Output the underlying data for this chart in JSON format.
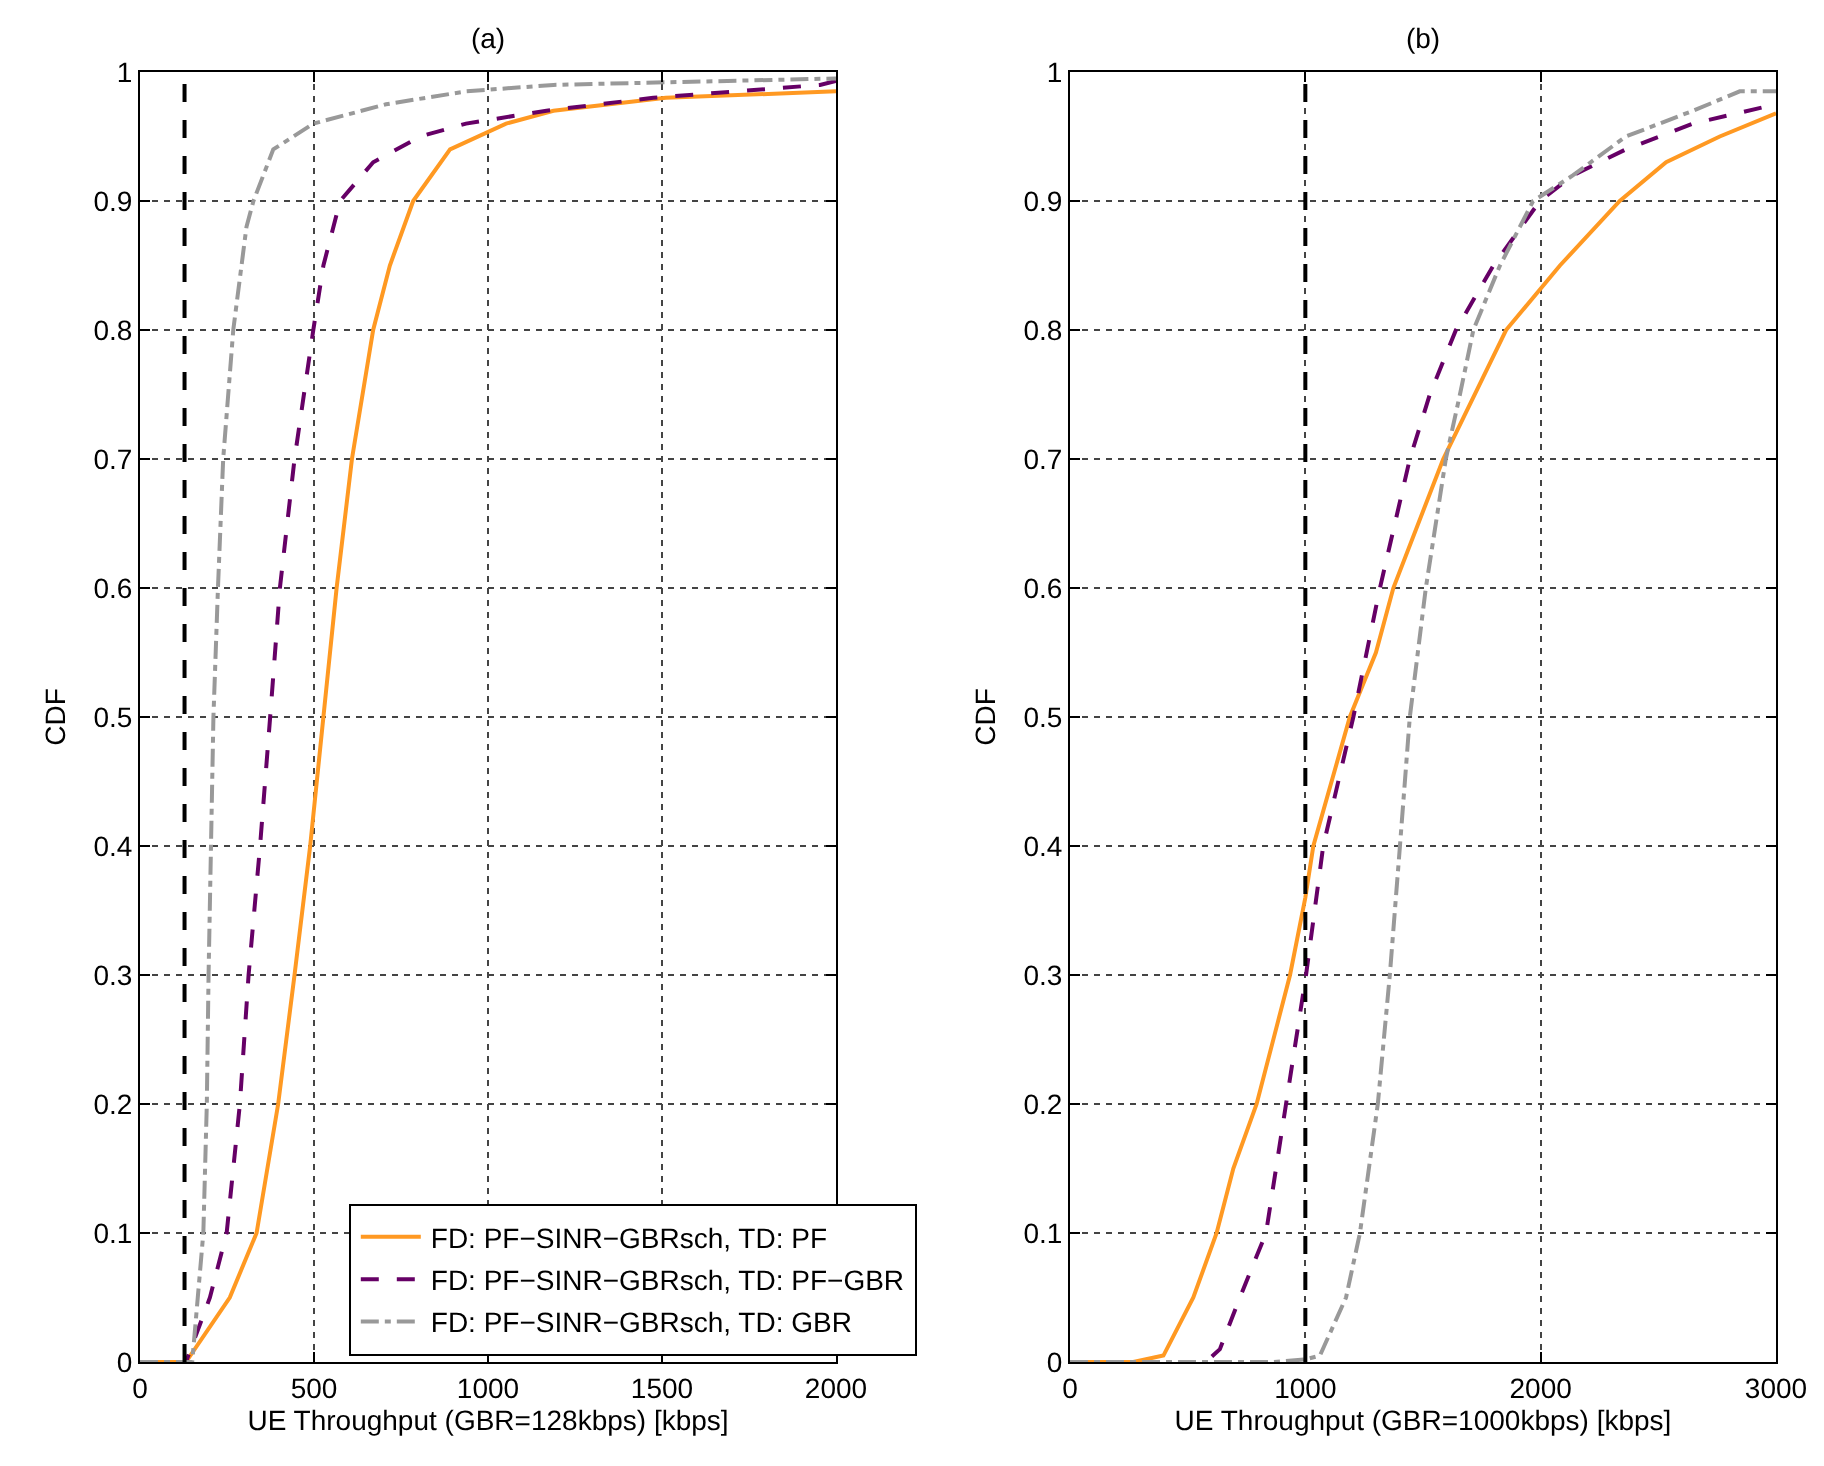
{
  "chart_data": [
    {
      "type": "line",
      "title": "(a)",
      "xlabel": "UE Throughput (GBR=128kbps) [kbps]",
      "ylabel": "CDF",
      "xlim": [
        0,
        2000
      ],
      "xticks": [
        0,
        500,
        1000,
        1500,
        2000
      ],
      "ylim": [
        0,
        1
      ],
      "yticks": [
        0,
        0.1,
        0.2,
        0.3,
        0.4,
        0.5,
        0.6,
        0.7,
        0.8,
        0.9,
        1
      ],
      "grid": true,
      "legend": "bottom right",
      "marker": "none",
      "ref_lines": [
        {
          "axis": "x",
          "value": 128,
          "color": "#000000",
          "line_style": "dashed"
        }
      ],
      "series": [
        {
          "name": "FD: PF−SINR−GBRsch, TD: PF",
          "color": "#ff9922",
          "line_style": "solid",
          "x": [
            0,
            132,
            258,
            335,
            397,
            444,
            489,
            527,
            565,
            609,
            670,
            718,
            785,
            891,
            1052,
            1188,
            1511,
            2000
          ],
          "values": [
            0,
            0,
            0.05,
            0.1,
            0.2,
            0.3,
            0.4,
            0.5,
            0.6,
            0.7,
            0.8,
            0.85,
            0.9,
            0.94,
            0.96,
            0.97,
            0.98,
            0.985
          ]
        },
        {
          "name": "FD: PF−SINR−GBRsch, TD: PF−GBR",
          "color": "#660066",
          "line_style": "dashed",
          "x": [
            0,
            132,
            201,
            249,
            287,
            312,
            345,
            374,
            402,
            444,
            498,
            527,
            575,
            670,
            805,
            937,
            1168,
            1475,
            1954,
            2000
          ],
          "values": [
            0,
            0,
            0.05,
            0.1,
            0.2,
            0.3,
            0.4,
            0.5,
            0.6,
            0.7,
            0.8,
            0.85,
            0.9,
            0.93,
            0.95,
            0.96,
            0.97,
            0.98,
            0.99,
            0.993
          ]
        },
        {
          "name": "FD: PF−SINR−GBRsch, TD: GBR",
          "color": "#999999",
          "line_style": "dashdot",
          "x": [
            0,
            150,
            182,
            192,
            197,
            211,
            224,
            239,
            268,
            306,
            326,
            383,
            498,
            707,
            937,
            1188,
            2000
          ],
          "values": [
            0,
            0,
            0.1,
            0.2,
            0.3,
            0.5,
            0.6,
            0.7,
            0.8,
            0.88,
            0.9,
            0.94,
            0.96,
            0.975,
            0.985,
            0.99,
            0.995
          ]
        }
      ]
    },
    {
      "type": "line",
      "title": "(b)",
      "xlabel": "UE Throughput (GBR=1000kbps) [kbps]",
      "ylabel": "CDF",
      "xlim": [
        0,
        3000
      ],
      "xticks": [
        0,
        1000,
        2000,
        3000
      ],
      "ylim": [
        0,
        1
      ],
      "yticks": [
        0,
        0.1,
        0.2,
        0.3,
        0.4,
        0.5,
        0.6,
        0.7,
        0.8,
        0.9,
        1
      ],
      "grid": true,
      "marker": "none",
      "ref_lines": [
        {
          "axis": "x",
          "value": 1000,
          "color": "#000000",
          "line_style": "dashed"
        }
      ],
      "series": [
        {
          "color": "#ff9922",
          "line_style": "solid",
          "x": [
            0,
            269,
            397,
            524,
            623,
            694,
            793,
            935,
            1000,
            1034,
            1189,
            1300,
            1374,
            1586,
            1853,
            2082,
            2336,
            2533,
            2761,
            3000
          ],
          "values": [
            0,
            0,
            0.005,
            0.05,
            0.1,
            0.15,
            0.2,
            0.3,
            0.36,
            0.4,
            0.5,
            0.55,
            0.6,
            0.7,
            0.8,
            0.85,
            0.9,
            0.93,
            0.95,
            0.968
          ]
        },
        {
          "color": "#660066",
          "line_style": "dashed",
          "x": [
            0,
            578,
            637,
            722,
            833,
            918,
            1003,
            1076,
            1204,
            1317,
            1444,
            1529,
            1640,
            1799,
            1997,
            2138,
            2362,
            2648,
            3000
          ],
          "values": [
            0,
            0,
            0.01,
            0.05,
            0.1,
            0.2,
            0.3,
            0.4,
            0.5,
            0.6,
            0.7,
            0.75,
            0.8,
            0.85,
            0.9,
            0.92,
            0.94,
            0.96,
            0.975
          ]
        },
        {
          "color": "#999999",
          "line_style": "dashdot",
          "x": [
            0,
            864,
            1000,
            1062,
            1173,
            1232,
            1308,
            1359,
            1402,
            1444,
            1512,
            1597,
            1657,
            1714,
            1827,
            1968,
            2138,
            2362,
            2648,
            2846,
            3000
          ],
          "values": [
            0,
            0,
            0.002,
            0.005,
            0.05,
            0.1,
            0.2,
            0.3,
            0.4,
            0.5,
            0.6,
            0.7,
            0.75,
            0.8,
            0.85,
            0.9,
            0.92,
            0.95,
            0.97,
            0.985,
            0.985
          ]
        }
      ]
    }
  ]
}
